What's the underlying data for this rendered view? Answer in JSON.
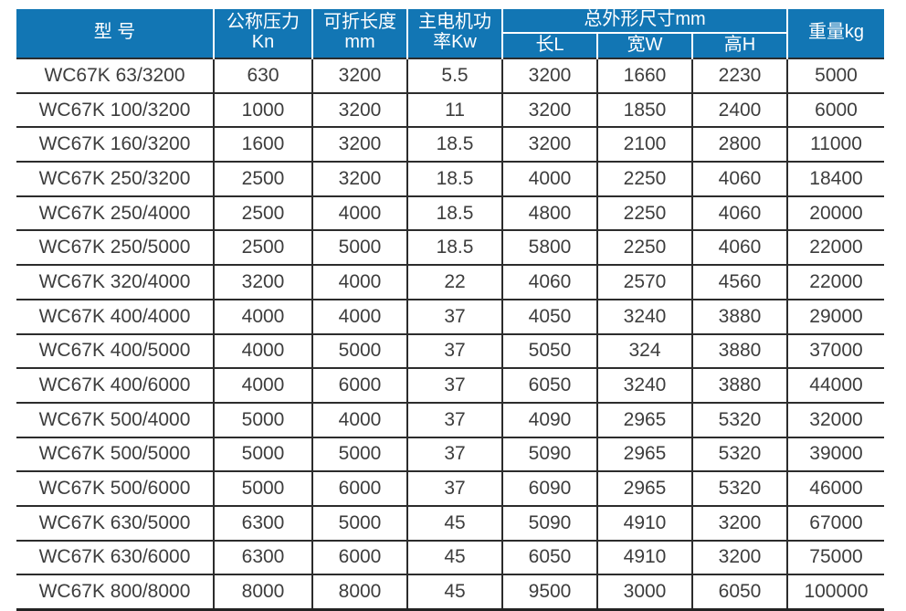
{
  "table": {
    "header": {
      "model": "型 号",
      "pressure": [
        "公称压力",
        "Kn"
      ],
      "fold_length": [
        "可折长度",
        "mm"
      ],
      "motor_power": [
        "主电机功",
        "率Kw"
      ],
      "dims_group": "总外形尺寸mm",
      "dim_length": "长L",
      "dim_width": "宽W",
      "dim_height": "高H",
      "weight": "重量kg"
    },
    "rows": [
      [
        "WC67K 63/3200",
        "630",
        "3200",
        "5.5",
        "3200",
        "1660",
        "2230",
        "5000"
      ],
      [
        "WC67K 100/3200",
        "1000",
        "3200",
        "11",
        "3200",
        "1850",
        "2400",
        "6000"
      ],
      [
        "WC67K 160/3200",
        "1600",
        "3200",
        "18.5",
        "3200",
        "2100",
        "2800",
        "11000"
      ],
      [
        "WC67K 250/3200",
        "2500",
        "3200",
        "18.5",
        "4000",
        "2250",
        "4060",
        "18400"
      ],
      [
        "WC67K 250/4000",
        "2500",
        "4000",
        "18.5",
        "4800",
        "2250",
        "4060",
        "20000"
      ],
      [
        "WC67K 250/5000",
        "2500",
        "5000",
        "18.5",
        "5800",
        "2250",
        "4060",
        "22000"
      ],
      [
        "WC67K 320/4000",
        "3200",
        "4000",
        "22",
        "4060",
        "2570",
        "4560",
        "22000"
      ],
      [
        "WC67K 400/4000",
        "4000",
        "4000",
        "37",
        "4050",
        "3240",
        "3880",
        "29000"
      ],
      [
        "WC67K 400/5000",
        "4000",
        "5000",
        "37",
        "5050",
        "324",
        "3880",
        "37000"
      ],
      [
        "WC67K 400/6000",
        "4000",
        "6000",
        "37",
        "6050",
        "3240",
        "3880",
        "44000"
      ],
      [
        "WC67K 500/4000",
        "5000",
        "4000",
        "37",
        "4090",
        "2965",
        "5320",
        "32000"
      ],
      [
        "WC67K 500/5000",
        "5000",
        "5000",
        "37",
        "5090",
        "2965",
        "5320",
        "39000"
      ],
      [
        "WC67K 500/6000",
        "5000",
        "6000",
        "37",
        "6090",
        "2965",
        "5320",
        "46000"
      ],
      [
        "WC67K 630/5000",
        "6300",
        "5000",
        "45",
        "5090",
        "4910",
        "3200",
        "67000"
      ],
      [
        "WC67K 630/6000",
        "6300",
        "6000",
        "45",
        "6050",
        "4910",
        "3200",
        "75000"
      ],
      [
        "WC67K 800/8000",
        "8000",
        "8000",
        "45",
        "9500",
        "3000",
        "6050",
        "100000"
      ]
    ]
  },
  "colors": {
    "header_bg": "#1276b4",
    "header_text": "#ffffff",
    "body_text": "#3d3d3d",
    "grid_line": "#2c2c2c"
  }
}
